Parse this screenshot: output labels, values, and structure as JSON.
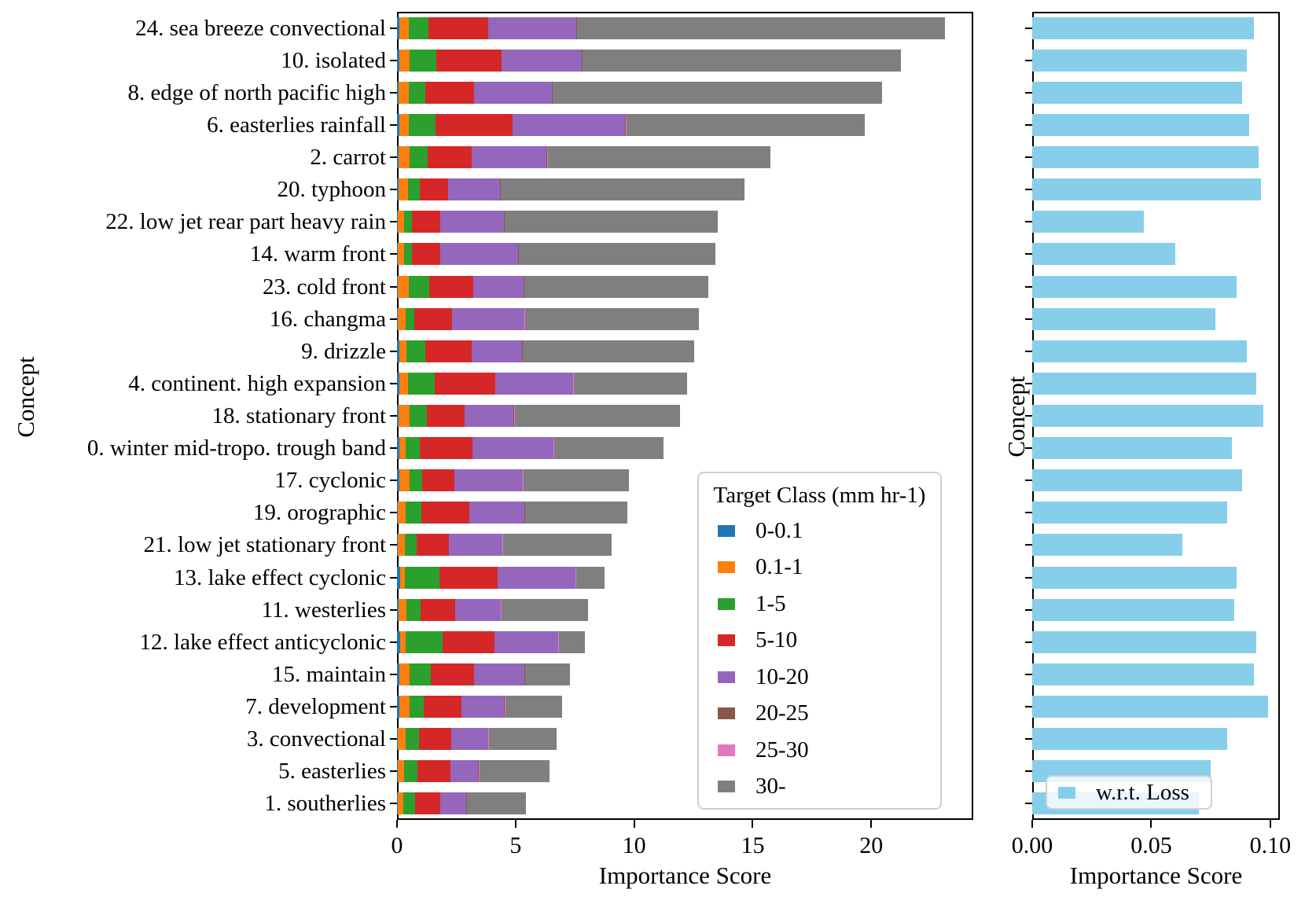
{
  "chart_data": [
    {
      "type": "bar",
      "orientation": "horizontal",
      "stacked": true,
      "xlabel": "Importance Score",
      "ylabel": "Concept",
      "xlim": [
        0,
        24.3
      ],
      "grid": false,
      "legend_position": "inside lower right",
      "legend_title": "Target Class (mm hr-1)",
      "xticks": {
        "values": [
          0,
          5,
          10,
          15,
          20
        ],
        "labels": [
          "0",
          "5",
          "10",
          "15",
          "20"
        ]
      },
      "categories": [
        "24. sea breeze convectional",
        "10. isolated",
        "8. edge of north pacific high",
        "6. easterlies rainfall",
        "2. carrot",
        "20. typhoon",
        "22. low jet rear part heavy rain",
        "14. warm front",
        "23. cold front",
        "16. changma",
        "9. drizzle",
        "4. continent. high expansion",
        "18. stationary front",
        "0. winter mid-tropo. trough band",
        "17. cyclonic",
        "19. orographic",
        "21. low jet stationary front",
        "13. lake effect cyclonic",
        "11. westerlies",
        "12. lake effect anticyclonic",
        "15. maintain",
        "7. development",
        "3. convectional",
        "5. easterlies",
        "1. southerlies"
      ],
      "series": [
        {
          "name": "0-0.1",
          "color": "#1f77b4",
          "values": [
            0.1,
            0.1,
            0.06,
            0.1,
            0.06,
            0.08,
            0.03,
            0.03,
            0.03,
            0.03,
            0.1,
            0.1,
            0.08,
            0.1,
            0.1,
            0.03,
            0.03,
            0.12,
            0.07,
            0.12,
            0.1,
            0.1,
            0.03,
            0.03,
            0.03
          ]
        },
        {
          "name": "0.1-1",
          "color": "#ff7f0e",
          "values": [
            0.39,
            0.42,
            0.44,
            0.4,
            0.46,
            0.4,
            0.27,
            0.27,
            0.46,
            0.32,
            0.31,
            0.35,
            0.44,
            0.28,
            0.42,
            0.35,
            0.29,
            0.22,
            0.34,
            0.25,
            0.42,
            0.42,
            0.35,
            0.27,
            0.22
          ]
        },
        {
          "name": "1-5",
          "color": "#2ca02c",
          "values": [
            0.82,
            1.13,
            0.71,
            1.13,
            0.77,
            0.49,
            0.33,
            0.33,
            0.88,
            0.39,
            0.77,
            1.14,
            0.74,
            0.59,
            0.55,
            0.64,
            0.51,
            1.44,
            0.6,
            1.55,
            0.91,
            0.61,
            0.55,
            0.55,
            0.5
          ]
        },
        {
          "name": "5-10",
          "color": "#d62728",
          "values": [
            2.55,
            2.76,
            2.04,
            3.23,
            1.85,
            1.19,
            1.18,
            1.18,
            1.85,
            1.58,
            1.96,
            2.57,
            1.6,
            2.21,
            1.35,
            2.04,
            1.37,
            2.46,
            1.45,
            2.19,
            1.82,
            1.59,
            1.35,
            1.4,
            1.07
          ]
        },
        {
          "name": "10-20",
          "color": "#9467bd",
          "values": [
            3.7,
            3.39,
            3.29,
            4.77,
            3.17,
            2.18,
            2.7,
            3.3,
            2.12,
            3.04,
            2.14,
            3.26,
            2.06,
            3.41,
            2.87,
            2.32,
            2.23,
            3.28,
            1.9,
            2.67,
            2.13,
            1.8,
            1.55,
            1.18,
            1.1
          ]
        },
        {
          "name": "20-25",
          "color": "#8c564b",
          "values": [
            0.02,
            0.02,
            0.02,
            0.02,
            0.02,
            0.02,
            0.02,
            0.02,
            0.02,
            0.02,
            0.02,
            0.02,
            0.02,
            0.02,
            0.02,
            0.02,
            0.02,
            0.02,
            0.02,
            0.02,
            0.02,
            0.02,
            0.02,
            0.02,
            0.02
          ]
        },
        {
          "name": "25-30",
          "color": "#e377c2",
          "values": [
            0.02,
            0.02,
            0.02,
            0.02,
            0.02,
            0.02,
            0.02,
            0.02,
            0.02,
            0.02,
            0.02,
            0.02,
            0.02,
            0.02,
            0.02,
            0.02,
            0.02,
            0.02,
            0.02,
            0.02,
            0.02,
            0.02,
            0.02,
            0.02,
            0.02
          ]
        },
        {
          "name": "30-",
          "color": "#7f7f7f",
          "values": [
            15.52,
            13.4,
            13.86,
            10.07,
            9.39,
            10.26,
            8.99,
            8.29,
            7.76,
            7.34,
            7.22,
            4.78,
            6.98,
            4.61,
            4.44,
            4.28,
            4.57,
            1.18,
            3.64,
            1.11,
            1.88,
            2.41,
            2.86,
            2.97,
            2.47
          ]
        }
      ]
    },
    {
      "type": "bar",
      "orientation": "horizontal",
      "stacked": false,
      "xlabel": "Importance Score",
      "ylabel": "Concept",
      "xlim": [
        0,
        0.104
      ],
      "grid": false,
      "legend_position": "inside lower center",
      "xticks": {
        "values": [
          0,
          0.05,
          0.1
        ],
        "labels": [
          "0.00",
          "0.05",
          "0.10"
        ]
      },
      "categories": [
        "24. sea breeze convectional",
        "10. isolated",
        "8. edge of north pacific high",
        "6. easterlies rainfall",
        "2. carrot",
        "20. typhoon",
        "22. low jet rear part heavy rain",
        "14. warm front",
        "23. cold front",
        "16. changma",
        "9. drizzle",
        "4. continent. high expansion",
        "18. stationary front",
        "0. winter mid-tropo. trough band",
        "17. cyclonic",
        "19. orographic",
        "21. low jet stationary front",
        "13. lake effect cyclonic",
        "11. westerlies",
        "12. lake effect anticyclonic",
        "15. maintain",
        "7. development",
        "3. convectional",
        "5. easterlies",
        "1. southerlies"
      ],
      "series": [
        {
          "name": "w.r.t. Loss",
          "color": "#87ceeb",
          "values": [
            0.093,
            0.09,
            0.088,
            0.091,
            0.095,
            0.096,
            0.047,
            0.06,
            0.086,
            0.077,
            0.09,
            0.094,
            0.097,
            0.084,
            0.088,
            0.082,
            0.063,
            0.086,
            0.085,
            0.094,
            0.093,
            0.099,
            0.082,
            0.075,
            0.07
          ]
        }
      ]
    }
  ],
  "colors": {
    "spine": "#000000",
    "legend_border": "#cfcfcf",
    "loss_bar": "#87ceeb"
  }
}
